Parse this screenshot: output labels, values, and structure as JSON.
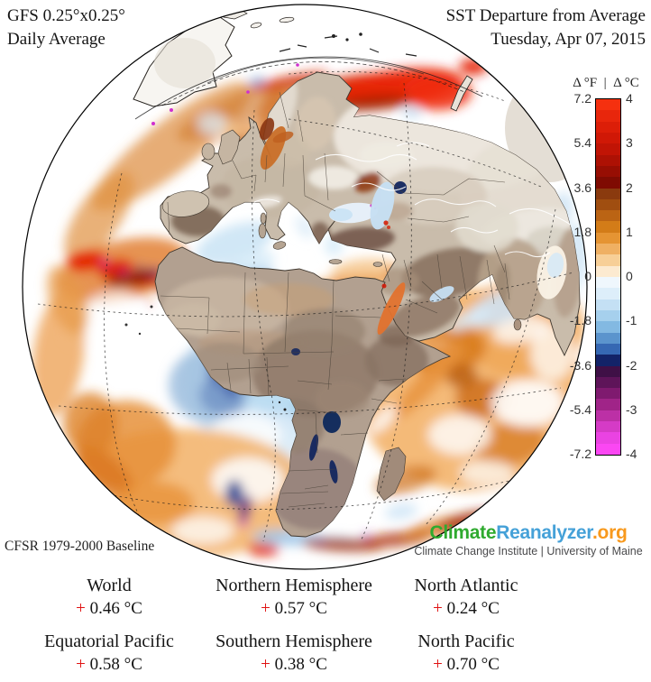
{
  "header": {
    "left_line1": "GFS 0.25°x0.25°",
    "left_line2": "Daily Average",
    "right_line1": "SST Departure from Average",
    "right_line2": "Tuesday, Apr 07, 2015"
  },
  "colorbar": {
    "title_f": "Δ °F",
    "sep": "|",
    "title_c": "Δ °C",
    "f_labels": [
      "7.2",
      "5.4",
      "3.6",
      "1.8",
      "0",
      "-1.8",
      "-3.6",
      "-5.4",
      "-7.2"
    ],
    "c_labels": [
      "4",
      "3",
      "2",
      "1",
      "0",
      "-1",
      "-2",
      "-3",
      "-4"
    ],
    "segments": [
      "#f5300f",
      "#e8260c",
      "#dc1e08",
      "#d01806",
      "#c11405",
      "#ad1104",
      "#970e03",
      "#7f0b02",
      "#8a3a0e",
      "#a04e10",
      "#bb6414",
      "#d37c18",
      "#e59433",
      "#efb063",
      "#f7cf97",
      "#fcead0",
      "#eff7fd",
      "#ddeefa",
      "#c4e0f4",
      "#a6d0ed",
      "#83b9e2",
      "#5b94cd",
      "#3668b3",
      "#132368",
      "#3f1046",
      "#5e1459",
      "#7f1a6f",
      "#a02488",
      "#bc30a6",
      "#d53bc6",
      "#ea43e2",
      "#fb47f3"
    ]
  },
  "footer": {
    "baseline": "CFSR 1979-2000 Baseline"
  },
  "logo": {
    "part1": "Climate",
    "part2": "Reanalyzer",
    "part3": ".org",
    "tagline": "Climate Change Institute | University of Maine",
    "color_green": "#2faa2f",
    "color_blue": "#45a1d8",
    "color_orange": "#f8991d"
  },
  "plus_sign": "+",
  "stats": [
    {
      "label": "World",
      "value": "0.46 °C"
    },
    {
      "label": "Northern Hemisphere",
      "value": "0.57 °C"
    },
    {
      "label": "North Atlantic",
      "value": "0.24 °C"
    },
    {
      "label": "Equatorial Pacific",
      "value": "0.58 °C"
    },
    {
      "label": "Southern Hemisphere",
      "value": "0.38 °C"
    },
    {
      "label": "North Pacific",
      "value": "0.70 °C"
    }
  ],
  "palette": {
    "warm_anomaly": "#e07828",
    "cool_anomaly": "#9dbede",
    "land": "#b2a090",
    "snow": "#eee8df",
    "lake": "#13265f",
    "plus_red": "#e01212"
  }
}
